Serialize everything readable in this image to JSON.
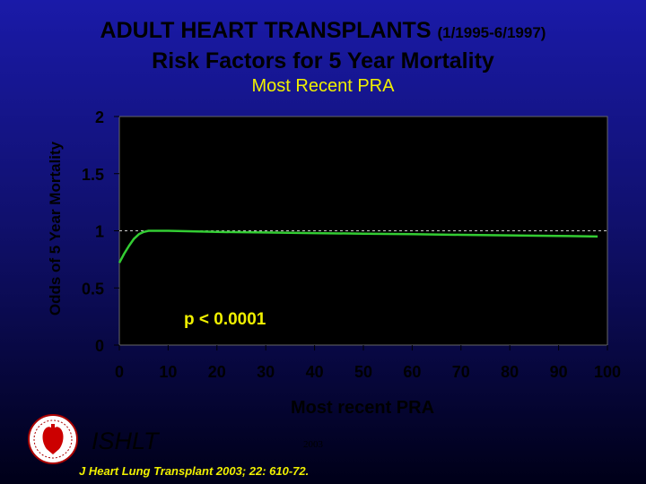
{
  "header": {
    "title_main": "ADULT HEART TRANSPLANTS",
    "title_dates": "(1/1995-6/1997)",
    "title_line2": "Risk Factors for 5 Year Mortality",
    "subtitle": "Most Recent PRA"
  },
  "footer": {
    "brand": "ISHLT",
    "year": "2003",
    "citation": "J Heart Lung Transplant 2003; 22: 610-72."
  },
  "colors": {
    "line": "#33cc33",
    "text_yellow": "#f0f000",
    "plot_bg": "#000000",
    "reference_line": "#cccccc"
  },
  "chart_data": {
    "type": "line",
    "title": "Risk Factors for 5 Year Mortality",
    "subtitle": "Most Recent PRA",
    "xlabel": "Most recent PRA",
    "ylabel": "Odds of 5 Year Mortality",
    "xlim": [
      0,
      100
    ],
    "ylim": [
      0,
      2
    ],
    "xticks": [
      0,
      10,
      20,
      30,
      40,
      50,
      60,
      70,
      80,
      90,
      100
    ],
    "yticks": [
      0,
      0.5,
      1,
      1.5,
      2
    ],
    "ytick_labels": [
      "0",
      "0.5",
      "1",
      "1.5",
      "2"
    ],
    "reference_line_y": 1,
    "annotation": "p < 0.0001",
    "series": [
      {
        "x": [
          0,
          1,
          2,
          3,
          4,
          5,
          6,
          7,
          8,
          10,
          15,
          20,
          30,
          40,
          50,
          60,
          70,
          80,
          90,
          98
        ],
        "values": [
          0.72,
          0.8,
          0.87,
          0.93,
          0.97,
          0.99,
          1.0,
          1.0,
          1.0,
          1.0,
          0.995,
          0.99,
          0.985,
          0.98,
          0.975,
          0.97,
          0.965,
          0.96,
          0.955,
          0.95
        ]
      }
    ]
  }
}
